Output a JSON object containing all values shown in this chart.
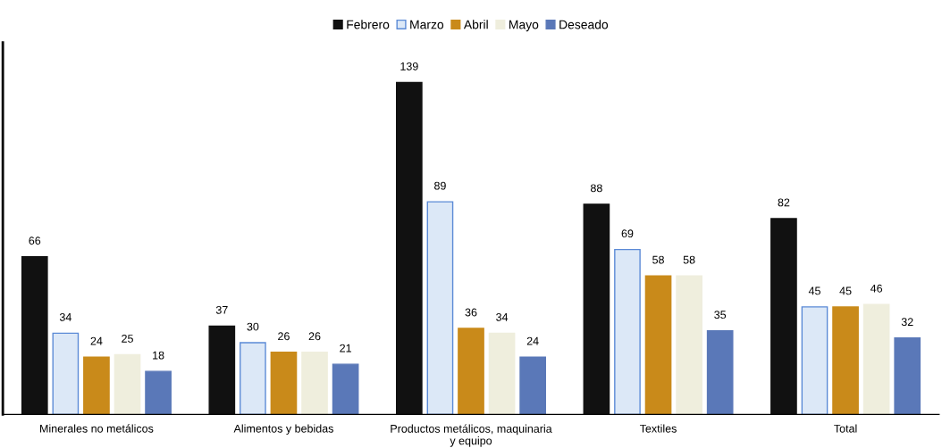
{
  "chart_data": {
    "type": "bar",
    "categories": [
      "Minerales no metálicos",
      "Alimentos y bebidas",
      "Productos metálicos, maquinaria y equipo",
      "Textiles",
      "Total"
    ],
    "series": [
      {
        "name": "Febrero",
        "color": "#111111",
        "values": [
          66,
          37,
          139,
          88,
          82
        ]
      },
      {
        "name": "Marzo",
        "color": "#dce8f7",
        "values": [
          34,
          30,
          89,
          69,
          45
        ]
      },
      {
        "name": "Abril",
        "color": "#c98a1a",
        "values": [
          24,
          26,
          36,
          58,
          45
        ]
      },
      {
        "name": "Mayo",
        "color": "#efeedd",
        "values": [
          25,
          26,
          34,
          58,
          46
        ]
      },
      {
        "name": "Deseado",
        "color": "#5a78b8",
        "values": [
          18,
          21,
          24,
          35,
          32
        ]
      }
    ],
    "data_labels": true,
    "legend": "top",
    "grid": false
  }
}
